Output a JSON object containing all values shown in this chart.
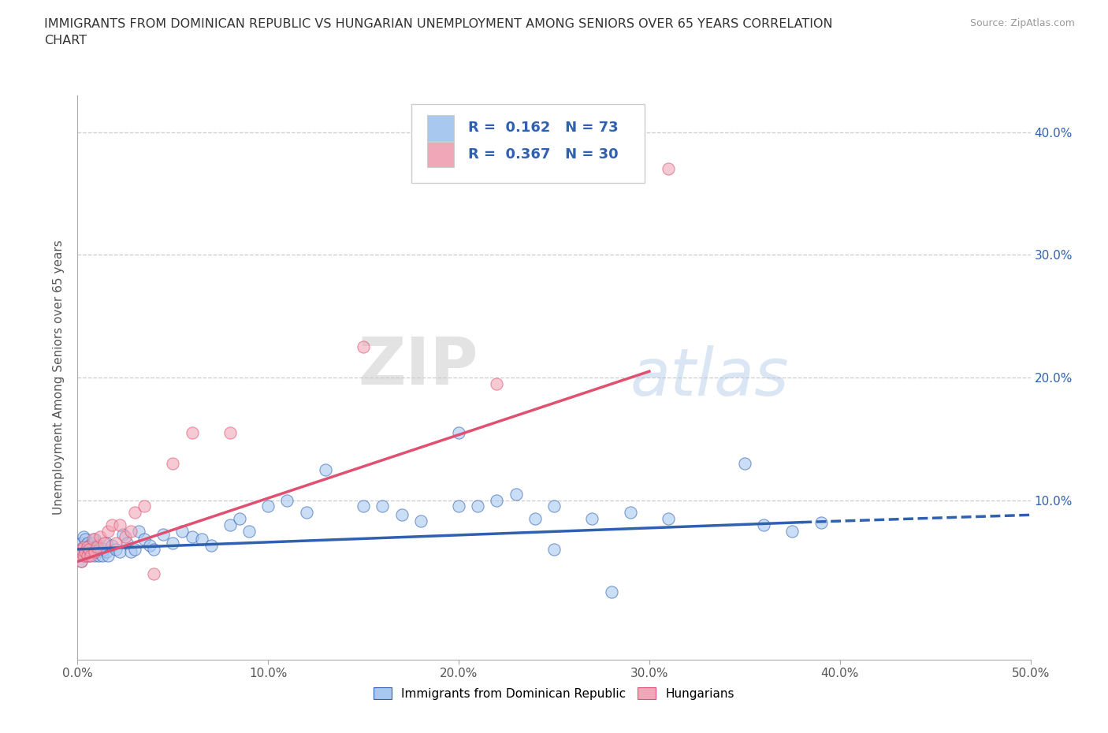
{
  "title": "IMMIGRANTS FROM DOMINICAN REPUBLIC VS HUNGARIAN UNEMPLOYMENT AMONG SENIORS OVER 65 YEARS CORRELATION\nCHART",
  "source": "Source: ZipAtlas.com",
  "ylabel": "Unemployment Among Seniors over 65 years",
  "xlim": [
    0.0,
    0.5
  ],
  "ylim": [
    -0.03,
    0.43
  ],
  "xticks": [
    0.0,
    0.1,
    0.2,
    0.3,
    0.4,
    0.5
  ],
  "xticklabels": [
    "0.0%",
    "10.0%",
    "20.0%",
    "30.0%",
    "40.0%",
    "50.0%"
  ],
  "yticks": [
    0.0,
    0.1,
    0.2,
    0.3,
    0.4
  ],
  "yticklabels_right": [
    "",
    "10.0%",
    "20.0%",
    "30.0%",
    "40.0%"
  ],
  "blue_color": "#a8c8f0",
  "pink_color": "#f0a8b8",
  "blue_line_color": "#3060b0",
  "pink_line_color": "#e05070",
  "watermark_zip": "ZIP",
  "watermark_atlas": "atlas",
  "legend_r1": "0.162",
  "legend_n1": "73",
  "legend_r2": "0.367",
  "legend_n2": "30",
  "blue_scatter_x": [
    0.001,
    0.002,
    0.002,
    0.003,
    0.003,
    0.003,
    0.004,
    0.004,
    0.004,
    0.005,
    0.005,
    0.005,
    0.006,
    0.006,
    0.007,
    0.007,
    0.008,
    0.008,
    0.009,
    0.009,
    0.01,
    0.01,
    0.011,
    0.012,
    0.013,
    0.014,
    0.015,
    0.015,
    0.016,
    0.018,
    0.02,
    0.022,
    0.024,
    0.026,
    0.028,
    0.03,
    0.032,
    0.035,
    0.038,
    0.04,
    0.045,
    0.05,
    0.055,
    0.06,
    0.065,
    0.07,
    0.08,
    0.085,
    0.09,
    0.1,
    0.11,
    0.12,
    0.13,
    0.15,
    0.16,
    0.17,
    0.18,
    0.2,
    0.21,
    0.22,
    0.23,
    0.24,
    0.25,
    0.27,
    0.29,
    0.31,
    0.35,
    0.36,
    0.375,
    0.39,
    0.2,
    0.25,
    0.28
  ],
  "blue_scatter_y": [
    0.06,
    0.065,
    0.05,
    0.058,
    0.062,
    0.07,
    0.055,
    0.063,
    0.068,
    0.058,
    0.06,
    0.065,
    0.055,
    0.062,
    0.058,
    0.064,
    0.06,
    0.065,
    0.055,
    0.068,
    0.058,
    0.063,
    0.055,
    0.062,
    0.055,
    0.06,
    0.058,
    0.065,
    0.055,
    0.063,
    0.06,
    0.058,
    0.072,
    0.065,
    0.058,
    0.06,
    0.075,
    0.068,
    0.063,
    0.06,
    0.072,
    0.065,
    0.075,
    0.07,
    0.068,
    0.063,
    0.08,
    0.085,
    0.075,
    0.095,
    0.1,
    0.09,
    0.125,
    0.095,
    0.095,
    0.088,
    0.083,
    0.095,
    0.095,
    0.1,
    0.105,
    0.085,
    0.095,
    0.085,
    0.09,
    0.085,
    0.13,
    0.08,
    0.075,
    0.082,
    0.155,
    0.06,
    0.025
  ],
  "pink_scatter_x": [
    0.001,
    0.002,
    0.002,
    0.003,
    0.003,
    0.004,
    0.005,
    0.005,
    0.006,
    0.007,
    0.008,
    0.009,
    0.01,
    0.012,
    0.014,
    0.016,
    0.018,
    0.02,
    0.022,
    0.025,
    0.028,
    0.03,
    0.035,
    0.04,
    0.05,
    0.06,
    0.08,
    0.15,
    0.22,
    0.31
  ],
  "pink_scatter_y": [
    0.058,
    0.05,
    0.06,
    0.055,
    0.062,
    0.058,
    0.055,
    0.062,
    0.06,
    0.055,
    0.068,
    0.058,
    0.062,
    0.07,
    0.065,
    0.075,
    0.08,
    0.065,
    0.08,
    0.07,
    0.075,
    0.09,
    0.095,
    0.04,
    0.13,
    0.155,
    0.155,
    0.225,
    0.195,
    0.37
  ],
  "blue_trendline_solid": [
    [
      0.0,
      0.06
    ],
    [
      0.38,
      0.082
    ]
  ],
  "blue_trendline_dashed": [
    [
      0.38,
      0.082
    ],
    [
      0.5,
      0.088
    ]
  ],
  "pink_trendline": [
    [
      0.0,
      0.05
    ],
    [
      0.3,
      0.205
    ]
  ],
  "grid_color": "#cccccc",
  "grid_linestyle": "--",
  "bg_color": "#ffffff",
  "legend_box_color": "#ffffff",
  "legend_border_color": "#cccccc",
  "text_color": "#333333",
  "tick_color": "#3060b0",
  "label_color": "#555555"
}
